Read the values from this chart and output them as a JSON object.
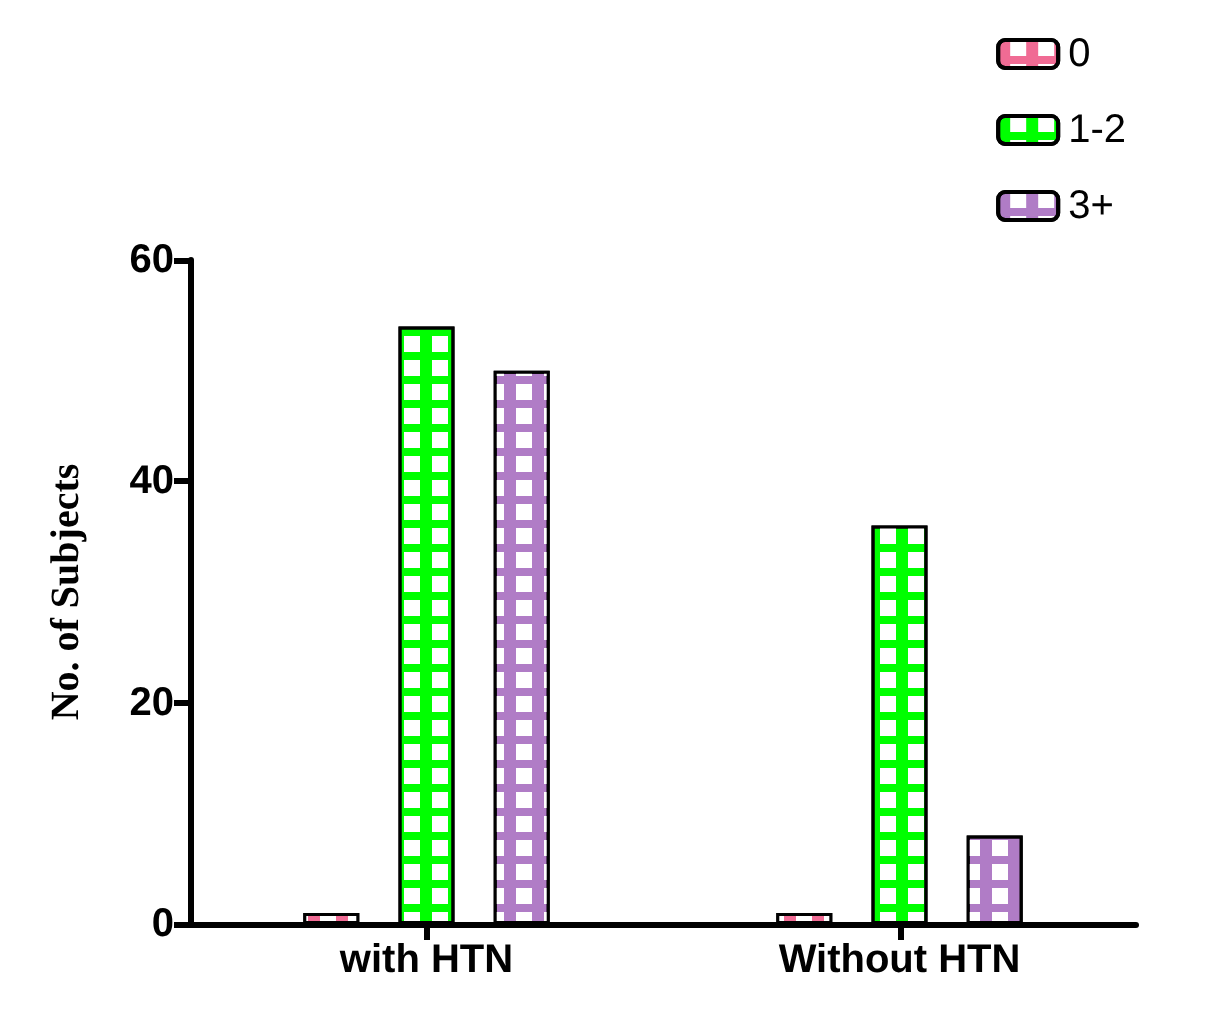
{
  "chart_data": {
    "type": "bar",
    "ylabel": "No. of Subjects",
    "categories": [
      "with HTN",
      "Without HTN"
    ],
    "series": [
      {
        "name": "0",
        "color": "#f06b94",
        "values": [
          1,
          1
        ]
      },
      {
        "name": "1-2",
        "color": "#00ff00",
        "values": [
          54,
          36
        ]
      },
      {
        "name": "3+",
        "color": "#b07cc6",
        "values": [
          50,
          8
        ]
      }
    ],
    "ylim": [
      0,
      60
    ],
    "yticks": [
      0,
      20,
      40,
      60
    ],
    "grid": false,
    "legend": "top right"
  }
}
